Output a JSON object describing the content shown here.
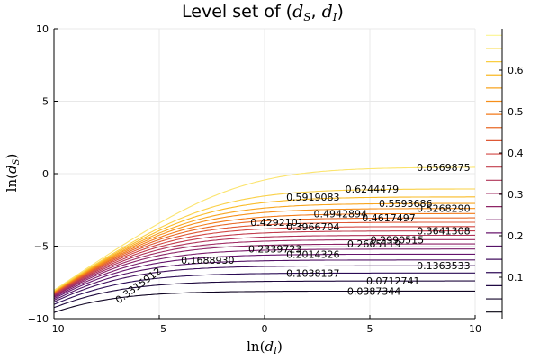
{
  "chart_data": {
    "type": "line",
    "title": "Level set of (d_S, d_I)",
    "xlabel": "ln(d_I)",
    "ylabel": "ln(d_S)",
    "xlim": [
      -10,
      10
    ],
    "ylim": [
      -10,
      10
    ],
    "xticks": [
      -10,
      -5,
      0,
      5,
      10
    ],
    "yticks": [
      -10,
      -5,
      0,
      5,
      10
    ],
    "grid": true,
    "colorbar": {
      "min": 0.0,
      "max": 0.7,
      "ticks": [
        "0.1",
        "0.2",
        "0.3",
        "0.4",
        "0.5",
        "0.6"
      ],
      "palette": [
        "#000004",
        "#280b54",
        "#65156e",
        "#9f2a63",
        "#d44842",
        "#f57d15",
        "#fac127",
        "#fcffa4"
      ]
    },
    "levels": [
      {
        "value": 0.0387344,
        "label": "0.0387344",
        "plateau": -8.1
      },
      {
        "value": 0.0712741,
        "label": "0.0712741",
        "plateau": -7.4
      },
      {
        "value": 0.1038137,
        "label": "0.1038137",
        "plateau": -6.85
      },
      {
        "value": 0.1363533,
        "label": "0.1363533",
        "plateau": -6.35
      },
      {
        "value": 0.168893,
        "label": "0.1688930",
        "plateau": -5.95
      },
      {
        "value": 0.2014326,
        "label": "0.2014326",
        "plateau": -5.55
      },
      {
        "value": 0.2339723,
        "label": "0.2339723",
        "plateau": -5.2
      },
      {
        "value": 0.2665119,
        "label": "0.2665119",
        "plateau": -4.85
      },
      {
        "value": 0.2990515,
        "label": "0.2990515",
        "plateau": -4.55
      },
      {
        "value": 0.3315912,
        "label": "0.3315912",
        "plateau": -4.25
      },
      {
        "value": 0.3641308,
        "label": "0.3641308",
        "plateau": -3.95
      },
      {
        "value": 0.3966704,
        "label": "0.3966704",
        "plateau": -3.65
      },
      {
        "value": 0.4292101,
        "label": "0.4292101",
        "plateau": -3.35
      },
      {
        "value": 0.4617497,
        "label": "0.4617497",
        "plateau": -3.05
      },
      {
        "value": 0.4942894,
        "label": "0.4942894",
        "plateau": -2.75
      },
      {
        "value": 0.526829,
        "label": "0.5268290",
        "plateau": -2.4
      },
      {
        "value": 0.5593686,
        "label": "0.5593686",
        "plateau": -2.05
      },
      {
        "value": 0.5919083,
        "label": "0.5919083",
        "plateau": -1.6
      },
      {
        "value": 0.6244479,
        "label": "0.6244479",
        "plateau": -1.05
      },
      {
        "value": 0.6569875,
        "label": "0.6569875",
        "plateau": 0.45
      }
    ],
    "label_positions": [
      {
        "label": "0.6569875",
        "x": 8.5,
        "y": 0.45
      },
      {
        "label": "0.6244479",
        "x": 5.1,
        "y": -1.05
      },
      {
        "label": "0.5919083",
        "x": 2.3,
        "y": -1.6
      },
      {
        "label": "0.5593686",
        "x": 6.7,
        "y": -2.05
      },
      {
        "label": "0.5268290",
        "x": 8.5,
        "y": -2.4
      },
      {
        "label": "0.4942894",
        "x": 3.6,
        "y": -2.75
      },
      {
        "label": "0.4617497",
        "x": 5.9,
        "y": -3.05
      },
      {
        "label": "0.4292101",
        "x": 0.6,
        "y": -3.35
      },
      {
        "label": "0.3966704",
        "x": 2.3,
        "y": -3.65
      },
      {
        "label": "0.3641308",
        "x": 8.5,
        "y": -3.95
      },
      {
        "label": "0.2990515",
        "x": 6.3,
        "y": -4.55
      },
      {
        "label": "0.2665119",
        "x": 5.2,
        "y": -4.85
      },
      {
        "label": "0.2014326",
        "x": 2.3,
        "y": -5.55
      },
      {
        "label": "0.2339723",
        "x": 0.5,
        "y": -5.2
      },
      {
        "label": "0.1688930",
        "x": -2.7,
        "y": -5.95
      },
      {
        "label": "0.1363533",
        "x": 8.5,
        "y": -6.35
      },
      {
        "label": "0.1038137",
        "x": 2.3,
        "y": -6.85
      },
      {
        "label": "0.0712741",
        "x": 6.1,
        "y": -7.4
      },
      {
        "label": "0.0387344",
        "x": 5.2,
        "y": -8.1
      },
      {
        "label": "0.3315912",
        "x": -6.0,
        "y": -7.7,
        "rotated": true
      }
    ]
  }
}
